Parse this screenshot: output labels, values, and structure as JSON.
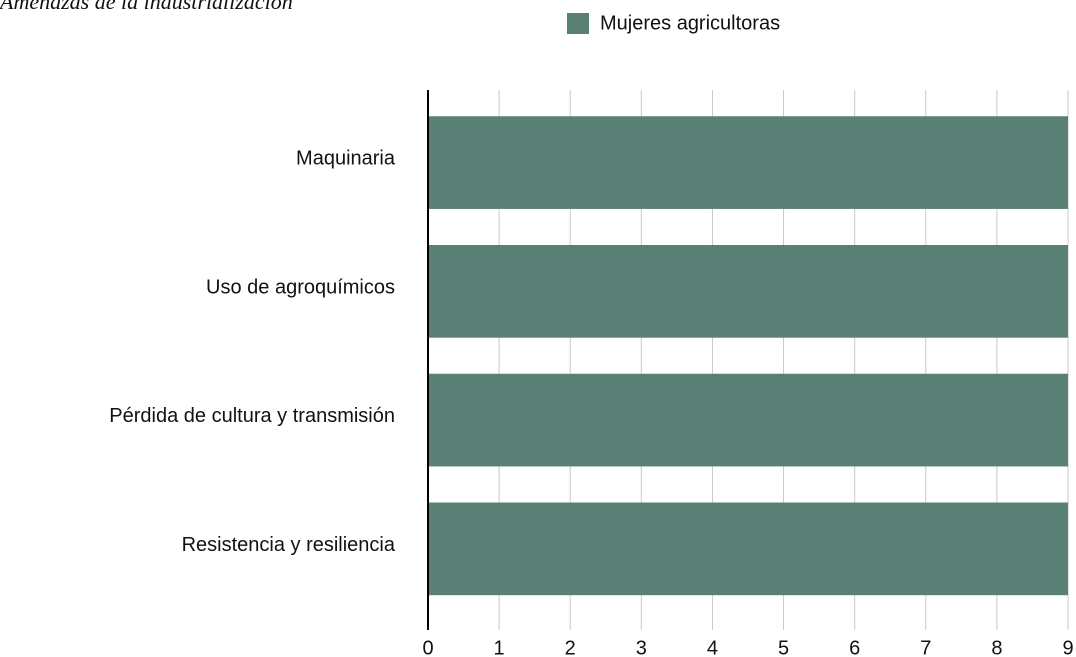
{
  "chart_data": {
    "type": "hbar",
    "title": "Amenazas de la industrialización",
    "categories": [
      "Maquinaria",
      "Uso de agroquímicos",
      "Pérdida de cultura y transmisión",
      "Resistencia y resiliencia"
    ],
    "series": [
      {
        "name": "Mujeres agricultoras",
        "color": "#5a8075",
        "values": [
          9,
          9,
          9,
          9
        ]
      }
    ],
    "xlim": [
      0,
      9
    ],
    "xticks": [
      0,
      1,
      2,
      3,
      4,
      5,
      6,
      7,
      8,
      9
    ],
    "grid": true,
    "legend": "top"
  }
}
